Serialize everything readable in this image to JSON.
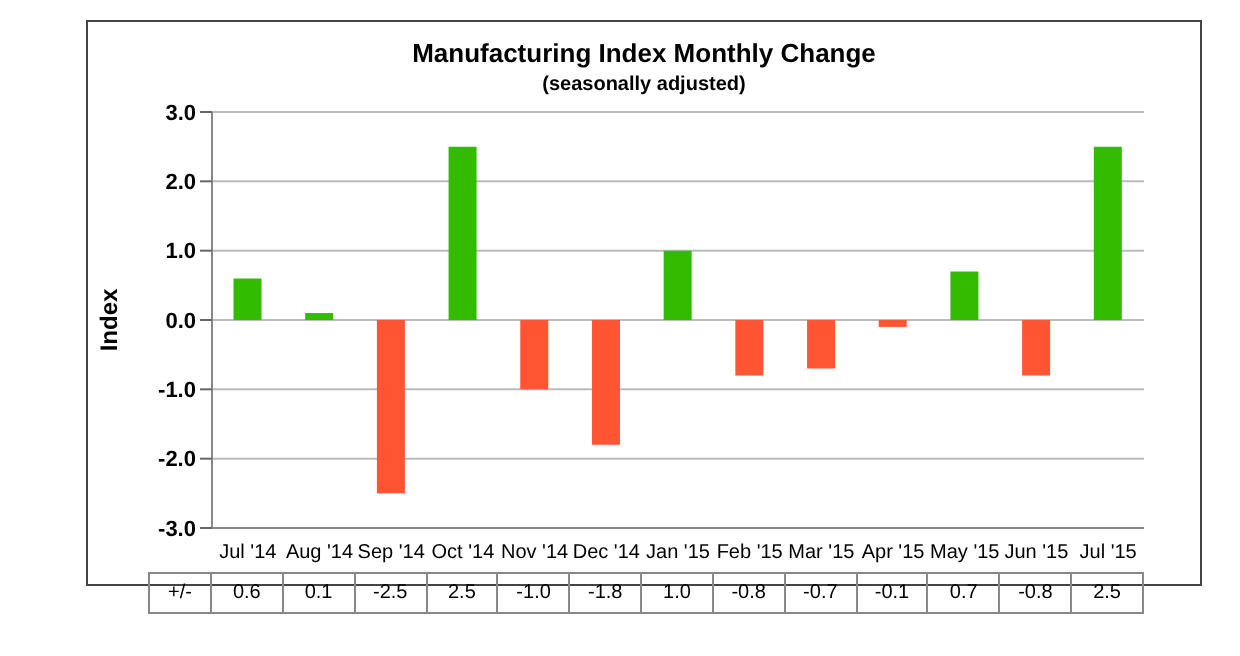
{
  "chart_data": {
    "type": "bar",
    "title": "Manufacturing Index Monthly Change",
    "subtitle": "(seasonally adjusted)",
    "ylabel": "Index",
    "categories": [
      "Jul '14",
      "Aug '14",
      "Sep '14",
      "Oct '14",
      "Nov '14",
      "Dec '14",
      "Jan '15",
      "Feb '15",
      "Mar '15",
      "Apr '15",
      "May '15",
      "Jun '15",
      "Jul '15"
    ],
    "values": [
      0.6,
      0.1,
      -2.5,
      2.5,
      -1.0,
      -1.8,
      1.0,
      -0.8,
      -0.7,
      -0.1,
      0.7,
      -0.8,
      2.5
    ],
    "colors": [
      "#33bb00",
      "#33bb00",
      "#ff5533",
      "#33bb00",
      "#ff5533",
      "#ff5533",
      "#33bb00",
      "#ff5533",
      "#ff5533",
      "#ff5533",
      "#33bb00",
      "#ff5533",
      "#33bb00"
    ],
    "value_labels": [
      "0.6",
      "0.1",
      "-2.5",
      "2.5",
      "-1.0",
      "-1.8",
      "1.0",
      "-0.8",
      "-0.7",
      "-0.1",
      "0.7",
      "-0.8",
      "2.5"
    ],
    "annotations": [
      "+/-"
    ],
    "ylim": [
      -3,
      3
    ],
    "yticks": [
      {
        "value": 3,
        "label": "3.0"
      },
      {
        "value": 2,
        "label": "2.0"
      },
      {
        "value": 1,
        "label": "1.0"
      },
      {
        "value": 0,
        "label": "0.0"
      },
      {
        "value": -1,
        "label": "-1.0"
      },
      {
        "value": -2,
        "label": "-2.0"
      },
      {
        "value": -3,
        "label": "-3.0"
      }
    ],
    "grid": "y",
    "legend": false
  }
}
